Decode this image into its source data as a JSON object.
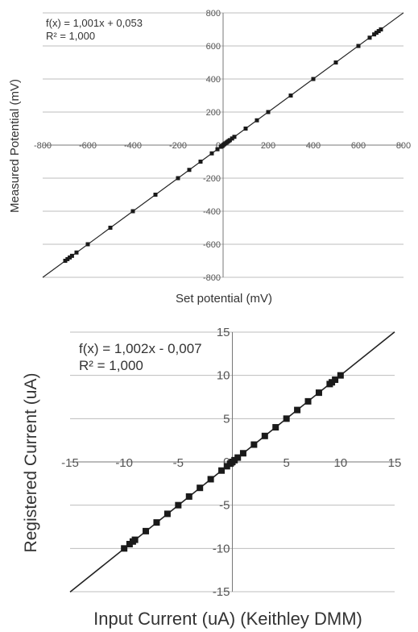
{
  "chart_data": [
    {
      "type": "scatter",
      "xlabel": "Set potential (mV)",
      "ylabel": "Measured Potential (mV)",
      "annotation": [
        "f(x) = 1,001x + 0,053",
        "R² = 1,000"
      ],
      "xlim": [
        -800,
        800
      ],
      "ylim": [
        -800,
        800
      ],
      "xticks": [
        -800,
        -600,
        -400,
        -200,
        0,
        200,
        400,
        600,
        800
      ],
      "yticks": [
        -800,
        -600,
        -400,
        -200,
        0,
        200,
        400,
        600,
        800
      ],
      "xtick_labels": [
        "-800",
        "-600",
        "-400",
        "-200",
        "0",
        "200",
        "400",
        "600",
        "800"
      ],
      "ytick_labels": [
        "-800",
        "-600",
        "-400",
        "-200",
        "0",
        "200",
        "400",
        "600",
        "800"
      ],
      "grid": "horizontal",
      "trendline": {
        "slope": 1.001,
        "intercept": 0.053
      },
      "series": [
        {
          "x": [
            -700,
            -690,
            -680,
            -670,
            -650,
            -600,
            -500,
            -400,
            -300,
            -200,
            -150,
            -100,
            -50,
            -25,
            -10,
            -5,
            0,
            5,
            10,
            15,
            20,
            25,
            30,
            40,
            50,
            100,
            150,
            200,
            300,
            400,
            500,
            600,
            650,
            670,
            680,
            690,
            700
          ],
          "y": [
            -700,
            -690,
            -680,
            -670,
            -650,
            -600,
            -500,
            -400,
            -300,
            -200,
            -150,
            -100,
            -50,
            -25,
            -10,
            -5,
            0,
            5,
            10,
            15,
            20,
            25,
            30,
            40,
            50,
            100,
            150,
            200,
            300,
            400,
            500,
            600,
            650,
            670,
            680,
            690,
            700
          ]
        }
      ]
    },
    {
      "type": "scatter",
      "xlabel": "Input Current (uA)  (Keithley DMM)",
      "ylabel": "Registered Current (uA)",
      "annotation": [
        "f(x) = 1,002x - 0,007",
        "R² = 1,000"
      ],
      "xlim": [
        -15,
        15
      ],
      "ylim": [
        -15,
        15
      ],
      "xticks": [
        -15,
        -10,
        -5,
        0,
        5,
        10,
        15
      ],
      "yticks": [
        -15,
        -10,
        -5,
        0,
        5,
        10,
        15
      ],
      "xtick_labels": [
        "-15",
        "-10",
        "-5",
        "0",
        "5",
        "10",
        "15"
      ],
      "ytick_labels": [
        "-15",
        "-10",
        "-5",
        "0",
        "5",
        "10",
        "15"
      ],
      "grid": "horizontal",
      "trendline": {
        "slope": 1.002,
        "intercept": -0.007
      },
      "series": [
        {
          "x": [
            -10,
            -9.5,
            -9.2,
            -9,
            -8,
            -7,
            -6,
            -5,
            -4,
            -3,
            -2,
            -1,
            -0.5,
            -0.2,
            0,
            0.2,
            0.5,
            1,
            2,
            3,
            4,
            5,
            6,
            7,
            8,
            9,
            9.2,
            9.5,
            10
          ],
          "y": [
            -10,
            -9.5,
            -9.2,
            -9,
            -8,
            -7,
            -6,
            -5,
            -4,
            -3,
            -2,
            -1,
            -0.5,
            -0.2,
            0,
            0.2,
            0.5,
            1,
            2,
            3,
            4,
            5,
            6,
            7,
            8,
            9,
            9.2,
            9.5,
            10
          ]
        }
      ]
    }
  ]
}
